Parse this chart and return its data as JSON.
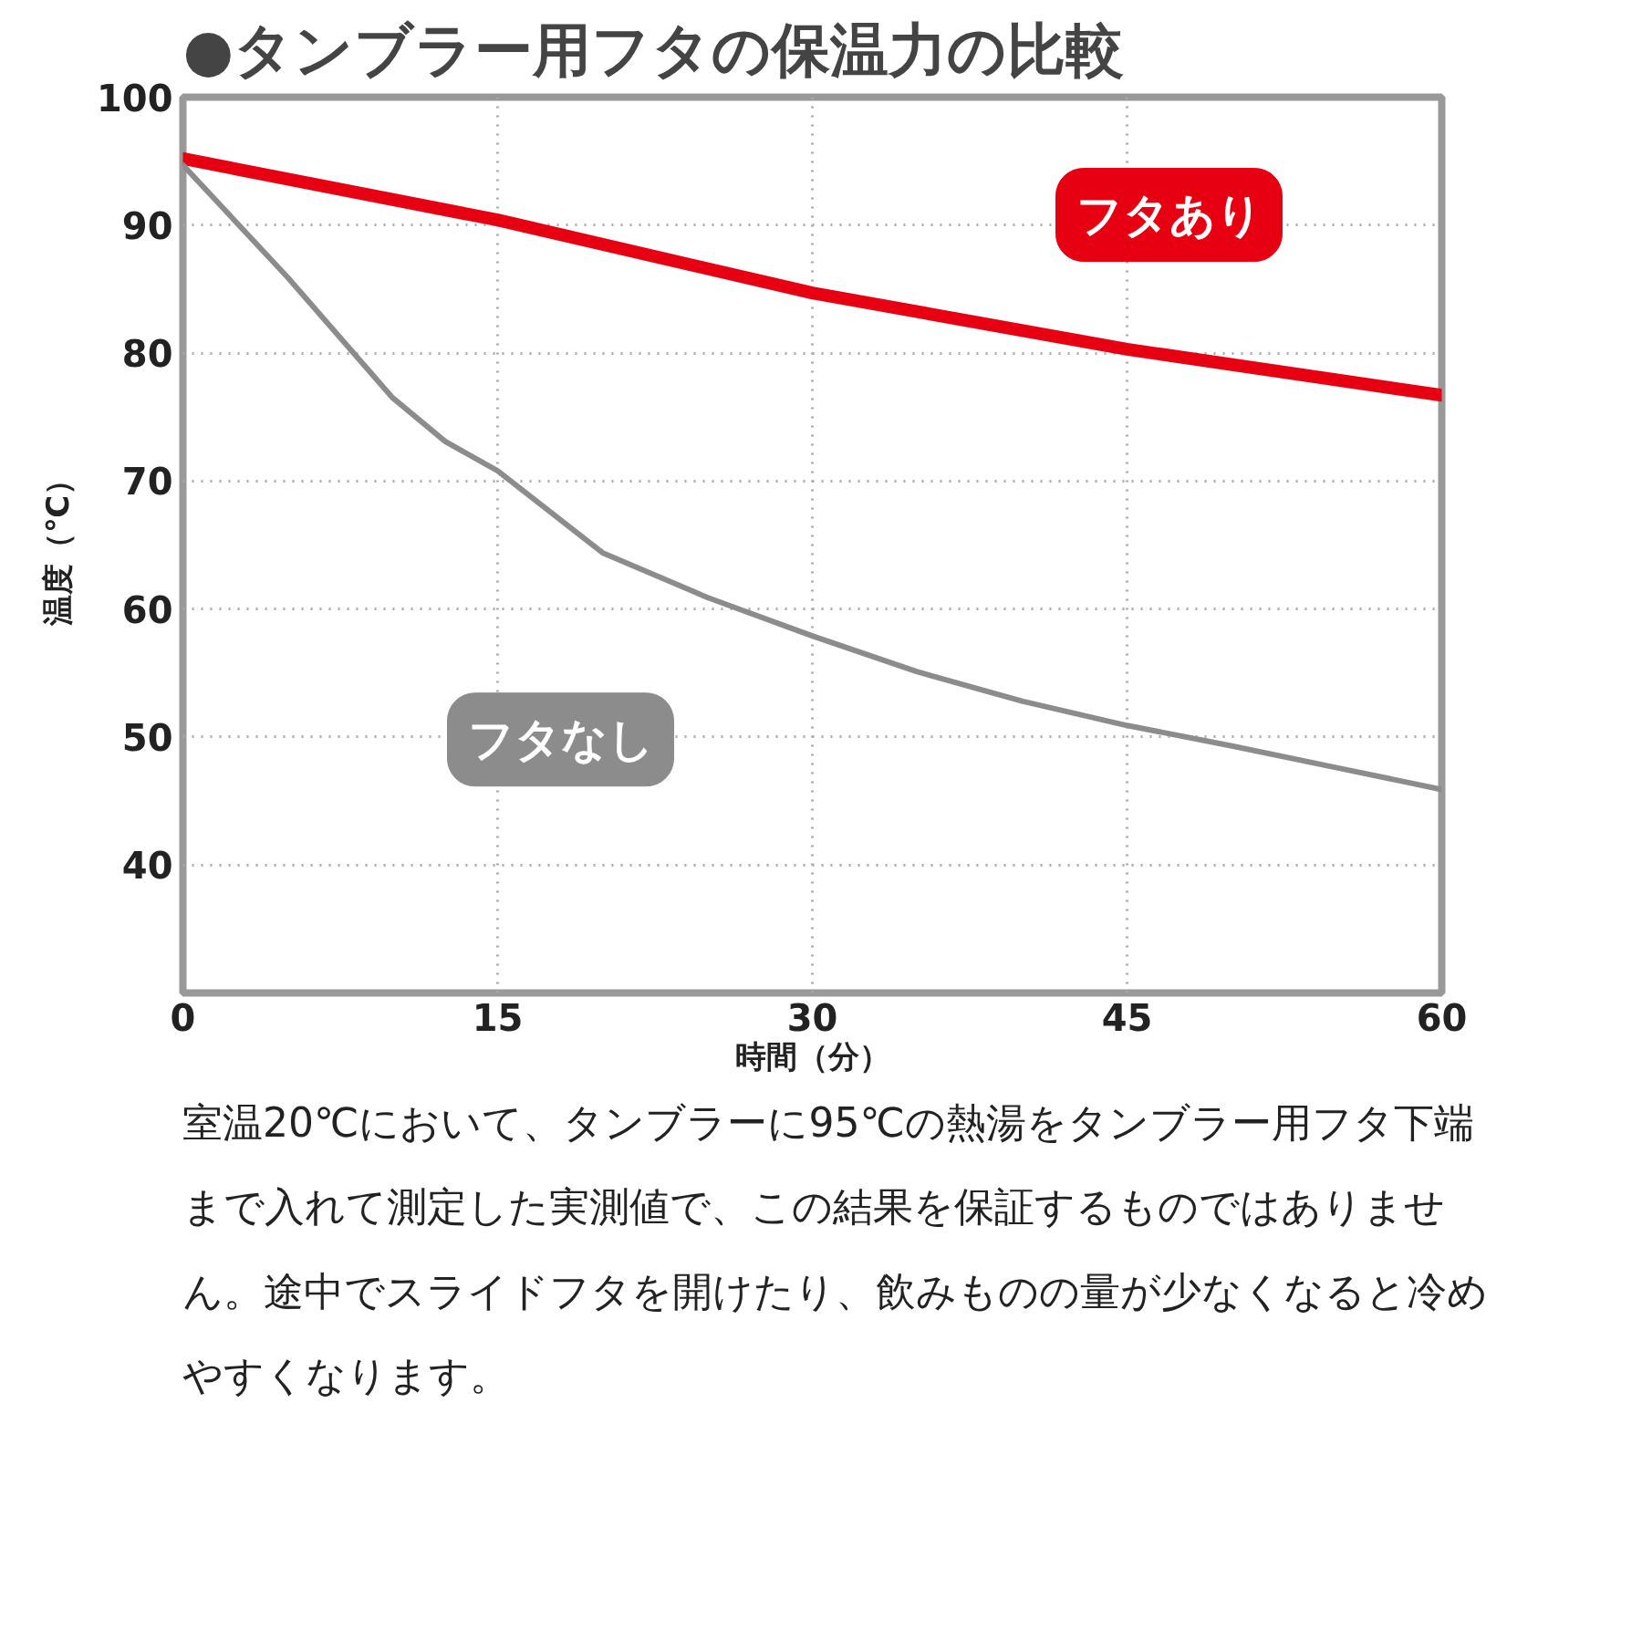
{
  "chart_data": {
    "type": "line",
    "title": "●タンブラー用フタの保温力の比較",
    "xlabel": "時間（分）",
    "ylabel": "温度（℃）",
    "xlim": [
      0,
      60
    ],
    "xticks": [
      0,
      15,
      30,
      45,
      60
    ],
    "ylim": [
      30,
      100
    ],
    "yticks": [
      40,
      50,
      60,
      70,
      80,
      90,
      100
    ],
    "grid": true,
    "line_style": "solid",
    "series": [
      {
        "name": "フタあり",
        "color": "#e60012",
        "x": [
          0,
          15,
          30,
          45,
          60
        ],
        "values": [
          95.2,
          90.4,
          84.7,
          80.3,
          76.7
        ]
      },
      {
        "name": "フタなし",
        "color": "#8c8c8c",
        "x": [
          0,
          5,
          10,
          12.5,
          15,
          20,
          25,
          30,
          35,
          40,
          45,
          50,
          55,
          60
        ],
        "values": [
          94.7,
          85.9,
          76.5,
          73.1,
          70.8,
          64.4,
          60.9,
          57.9,
          55.1,
          52.8,
          50.9,
          49.3,
          47.6,
          45.9
        ]
      }
    ],
    "annotations": [
      "室温20℃において、タンブラーに95℃の熱湯をタンブラー用フタ下端まで入れて測定した実測値で、この結果を保証するものではありません。途中でスライドフタを開けたり、飲みものの量が少なくなると冷めやすくなります。"
    ]
  }
}
